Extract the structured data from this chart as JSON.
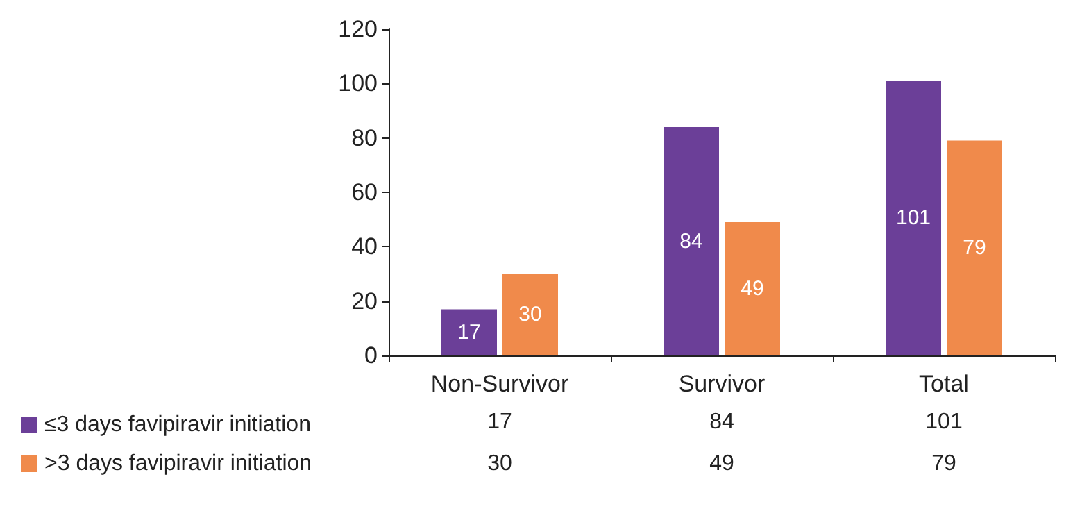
{
  "chart_data": {
    "type": "bar",
    "categories": [
      "Non-Survivor",
      "Survivor",
      "Total"
    ],
    "series": [
      {
        "name": "≤3 days favipiravir initiation",
        "color": "#6b3f98",
        "values": [
          17,
          84,
          101
        ]
      },
      {
        "name": ">3 days favipiravir initiation",
        "color": "#f08a4b",
        "values": [
          30,
          49,
          79
        ]
      }
    ],
    "annotations": [
      "17",
      "84",
      "101",
      "30",
      "49",
      "79"
    ],
    "ylim": [
      0,
      120
    ],
    "yticks": [
      0,
      20,
      40,
      60,
      80,
      100,
      120
    ],
    "grid": false,
    "legend": "bottom left",
    "data_labels": true
  }
}
